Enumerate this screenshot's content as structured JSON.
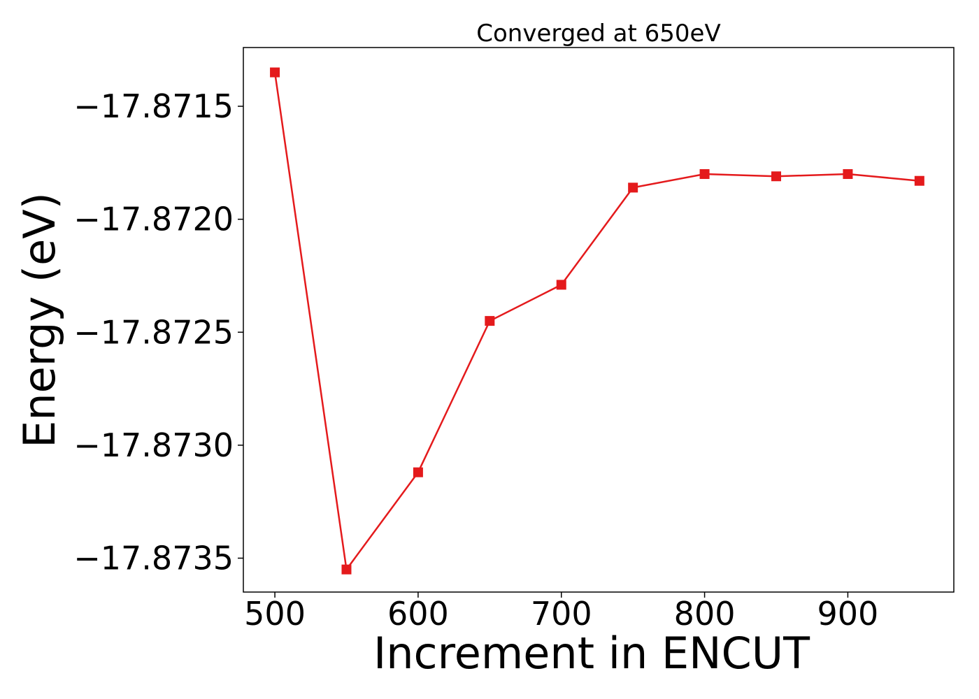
{
  "chart_data": {
    "type": "line",
    "title": "Converged at 650eV",
    "xlabel": "Increment in ENCUT",
    "ylabel": "Energy (eV)",
    "xlim": [
      478,
      974
    ],
    "ylim": [
      -17.87365,
      -17.87124
    ],
    "xticks": [
      500,
      600,
      700,
      800,
      900
    ],
    "xtick_labels": [
      "500",
      "600",
      "700",
      "800",
      "900"
    ],
    "yticks": [
      -17.8715,
      -17.872,
      -17.8725,
      -17.873,
      -17.8735
    ],
    "ytick_labels": [
      "−17.8715",
      "−17.8720",
      "−17.8725",
      "−17.8730",
      "−17.8735"
    ],
    "grid": false,
    "series": [
      {
        "color": "#e41a1c",
        "marker": "square",
        "x": [
          500,
          550,
          600,
          650,
          700,
          750,
          800,
          850,
          900,
          950
        ],
        "y": [
          -17.87135,
          -17.87355,
          -17.87312,
          -17.87245,
          -17.87229,
          -17.87186,
          -17.8718,
          -17.87181,
          -17.8718,
          -17.87183
        ]
      }
    ]
  }
}
